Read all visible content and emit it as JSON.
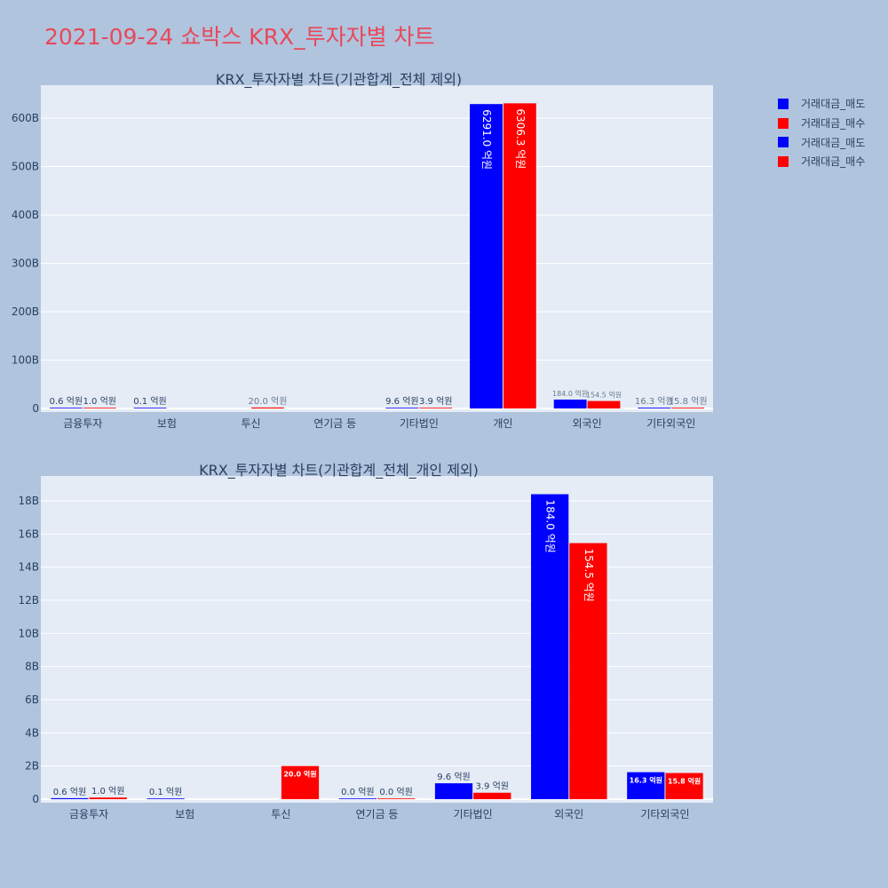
{
  "page_title": "2021-09-24 쇼박스 KRX_투자자별 차트",
  "colors": {
    "sell": "#0000ff",
    "buy": "#ff0000",
    "title": "#e8485a",
    "plot_bg": "#e5ecf6",
    "page_bg": "#b0c4de",
    "text": "#2a3f5f"
  },
  "legend": {
    "placement": "top-right",
    "items": [
      {
        "label": "거래대금_매도",
        "color": "#0000ff"
      },
      {
        "label": "거래대금_매수",
        "color": "#ff0000"
      },
      {
        "label": "거래대금_매도",
        "color": "#0000ff"
      },
      {
        "label": "거래대금_매수",
        "color": "#ff0000"
      }
    ]
  },
  "chart_data": [
    {
      "type": "bar",
      "title": "KRX_투자자별 차트(기관합계_전체 제외)",
      "categories": [
        "금융투자",
        "보험",
        "투신",
        "연기금 등",
        "기타법인",
        "개인",
        "외국인",
        "기타외국인"
      ],
      "series": [
        {
          "name": "거래대금_매도",
          "color": "#0000ff",
          "values": [
            0.06,
            0.01,
            null,
            null,
            0.96,
            629.1,
            18.4,
            1.63
          ],
          "labels": [
            "0.6 억원",
            "0.1 억원",
            "",
            "",
            "9.6 억원",
            "6291.0 억원",
            "184.0 억원",
            "16.3 억원"
          ]
        },
        {
          "name": "거래대금_매수",
          "color": "#ff0000",
          "values": [
            0.1,
            null,
            2.0,
            null,
            0.39,
            630.63,
            15.45,
            1.58
          ],
          "labels": [
            "1.0 억원",
            "",
            "20.0 억원",
            "",
            "3.9 억원",
            "6306.3 억원",
            "154.5 억원",
            "15.8 억원"
          ]
        }
      ],
      "yunit": "B",
      "ylim": [
        0,
        668
      ],
      "yticks": [
        0,
        100,
        200,
        300,
        400,
        500,
        600
      ],
      "ytick_labels": [
        "0",
        "100B",
        "200B",
        "300B",
        "400B",
        "500B",
        "600B"
      ],
      "grid": true
    },
    {
      "type": "bar",
      "title": "KRX_투자자별 차트(기관합계_전체_개인 제외)",
      "categories": [
        "금융투자",
        "보험",
        "투신",
        "연기금 등",
        "기타법인",
        "외국인",
        "기타외국인"
      ],
      "series": [
        {
          "name": "거래대금_매도",
          "color": "#0000ff",
          "values": [
            0.06,
            0.01,
            null,
            0.0,
            0.96,
            18.4,
            1.63
          ],
          "labels": [
            "0.6 억원",
            "0.1 억원",
            "",
            "0.0 억원",
            "9.6 억원",
            "184.0 억원",
            "16.3 억원"
          ]
        },
        {
          "name": "거래대금_매수",
          "color": "#ff0000",
          "values": [
            0.1,
            null,
            2.0,
            0.0,
            0.39,
            15.45,
            1.58
          ],
          "labels": [
            "1.0 억원",
            "",
            "20.0 억원",
            "0.0 억원",
            "3.9 억원",
            "154.5 억원",
            "15.8 억원"
          ]
        }
      ],
      "yunit": "B",
      "ylim": [
        0,
        19.5
      ],
      "yticks": [
        0,
        2,
        4,
        6,
        8,
        10,
        12,
        14,
        16,
        18
      ],
      "ytick_labels": [
        "0",
        "2B",
        "4B",
        "6B",
        "8B",
        "10B",
        "12B",
        "14B",
        "16B",
        "18B"
      ],
      "grid": true
    }
  ]
}
